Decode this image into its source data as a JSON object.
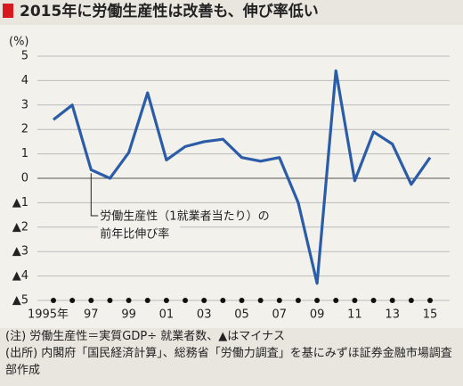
{
  "chart_data": {
    "type": "line",
    "title": "2015年に労働生産性は改善も、伸び率低い",
    "y_unit": "(%)",
    "categories": [
      "1995年",
      null,
      "97",
      null,
      "99",
      null,
      "01",
      null,
      "03",
      null,
      "05",
      null,
      "07",
      null,
      "09",
      null,
      "11",
      null,
      "13",
      null,
      "15"
    ],
    "series": [
      {
        "name": "労働生産性（1就業者当たり）の前年比伸び率",
        "color": "#2b5ca8",
        "values": [
          2.4,
          3.0,
          0.35,
          0.0,
          1.05,
          3.5,
          0.75,
          1.3,
          1.5,
          1.6,
          0.85,
          0.7,
          0.85,
          -1.0,
          -4.3,
          4.4,
          -0.1,
          1.9,
          1.4,
          -0.25,
          0.85
        ]
      }
    ],
    "annotation": [
      "労働生産性（1就業者当たり）の",
      "前年比伸び率"
    ],
    "ylim": [
      -5,
      5
    ],
    "yticks": [
      {
        "value": -5,
        "label": "▲5"
      },
      {
        "value": -4,
        "label": "▲4"
      },
      {
        "value": -3,
        "label": "▲3"
      },
      {
        "value": -2,
        "label": "▲2"
      },
      {
        "value": -1,
        "label": "▲1"
      },
      0,
      1,
      2,
      3,
      4,
      5
    ],
    "grid": true,
    "notes": [
      "(注) 労働生産性＝実質GDP÷ 就業者数、▲はマイナス",
      "(出所) 内閣府「国民経済計算」、総務省「労働力調査」を基にみずほ証券金融市場調査部作成"
    ]
  }
}
